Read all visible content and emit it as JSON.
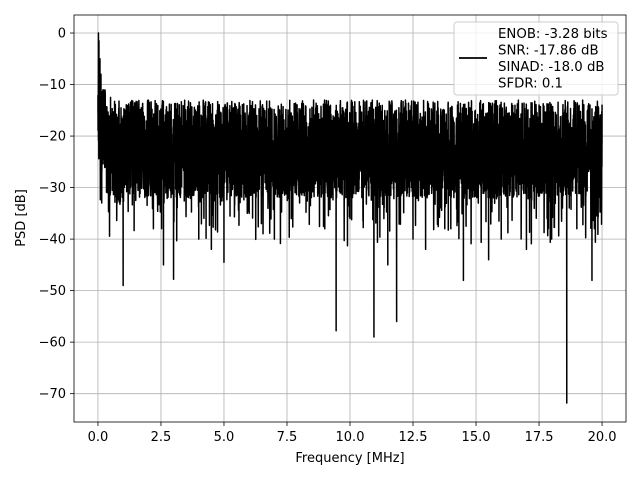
{
  "chart_data": {
    "type": "line",
    "title": "",
    "xlabel": "Frequency [MHz]",
    "ylabel": "PSD [dB]",
    "xlim": [
      -0.95,
      20.95
    ],
    "ylim": [
      -75.5,
      3.5
    ],
    "grid": true,
    "legend_position": "top-right",
    "series": [
      {
        "name": "ENOB: -3.28 bits\nSNR: -17.86 dB\nSINAD: -18.0 dB\nSFDR: 0.1",
        "color": "#000000",
        "x": [
          0.0,
          0.02,
          0.04,
          0.06,
          0.08,
          0.1,
          0.12,
          0.15,
          0.2,
          0.3,
          0.5,
          0.8,
          1.0,
          1.5,
          2.2,
          2.6,
          3.0,
          4.0,
          4.5,
          5.0,
          6.0,
          7.0,
          8.0,
          9.0,
          9.45,
          10.0,
          10.95,
          11.5,
          11.85,
          12.5,
          13.0,
          14.0,
          14.5,
          15.5,
          16.0,
          17.0,
          18.0,
          18.6,
          19.0,
          19.6,
          20.0
        ],
        "values": [
          -15.5,
          0.0,
          -1.5,
          -20.0,
          -5.0,
          -25.0,
          -8.0,
          -33.0,
          -11.0,
          -26.0,
          -12.5,
          -27.0,
          -49.0,
          -30.0,
          -38.0,
          -45.0,
          -47.8,
          -40.0,
          -42.0,
          -44.5,
          -35.0,
          -40.0,
          -33.0,
          -38.0,
          -57.8,
          -36.0,
          -59.0,
          -45.0,
          -56.0,
          -40.0,
          -42.0,
          -38.0,
          -48.0,
          -44.0,
          -40.0,
          -42.0,
          -40.0,
          -71.8,
          -38.0,
          -48.0,
          -14.0
        ]
      }
    ],
    "x_ticks": [
      {
        "value": 0,
        "label": "0.0"
      },
      {
        "value": 2.5,
        "label": "2.5"
      },
      {
        "value": 5,
        "label": "5.0"
      },
      {
        "value": 7.5,
        "label": "7.5"
      },
      {
        "value": 10,
        "label": "10.0"
      },
      {
        "value": 12.5,
        "label": "12.5"
      },
      {
        "value": 15,
        "label": "15.0"
      },
      {
        "value": 17.5,
        "label": "17.5"
      },
      {
        "value": 20,
        "label": "20.0"
      }
    ],
    "y_ticks": [
      {
        "value": 0,
        "label": "0"
      },
      {
        "value": -10,
        "label": "−10"
      },
      {
        "value": -20,
        "label": "−20"
      },
      {
        "value": -30,
        "label": "−30"
      },
      {
        "value": -40,
        "label": "−40"
      },
      {
        "value": -50,
        "label": "−50"
      },
      {
        "value": -60,
        "label": "−60"
      },
      {
        "value": -70,
        "label": "−70"
      }
    ],
    "legend_lines": [
      "ENOB: -3.28 bits",
      "SNR: -17.86 dB",
      "SINAD: -18.0 dB",
      "SFDR: 0.1"
    ]
  }
}
